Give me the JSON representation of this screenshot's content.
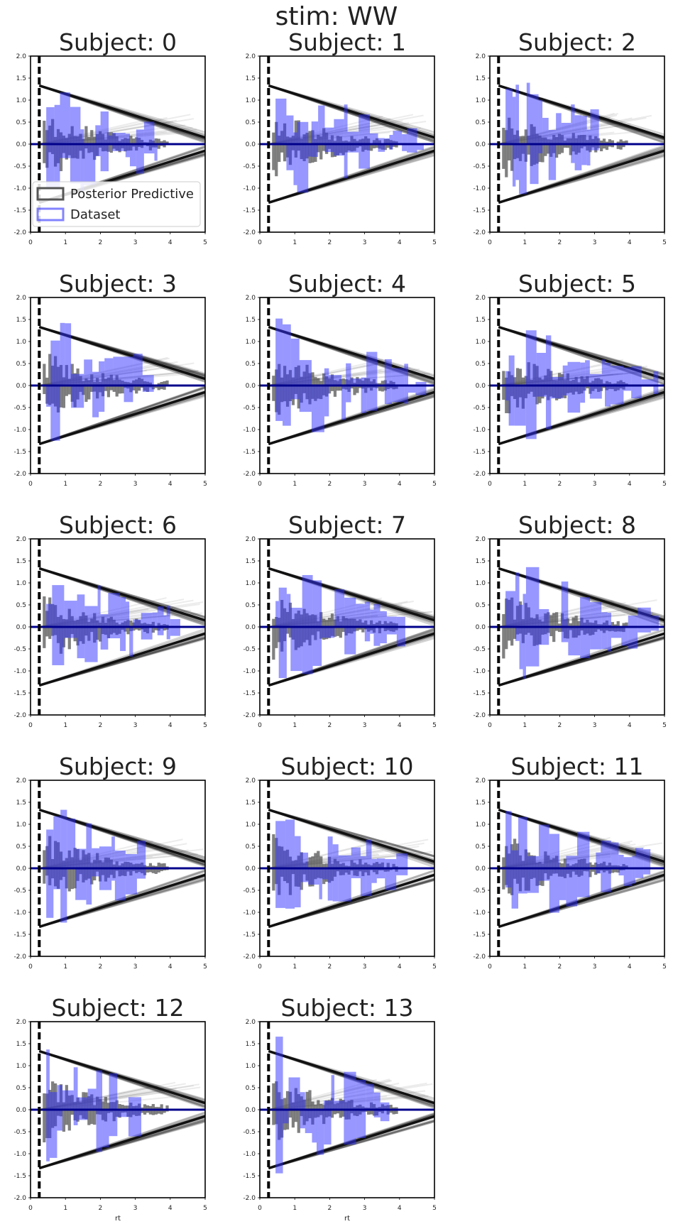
{
  "suptitle": "stim: WW",
  "chart_data": {
    "type": "mixed",
    "description": "Posterior predictive histograms (grey) vs dataset histograms (blue) per subject, with DDM-style collapsing boundaries.",
    "xlim": [
      0,
      5
    ],
    "ylim": [
      -2,
      2
    ],
    "xticks": [
      "0",
      "1",
      "2",
      "3",
      "4",
      "5"
    ],
    "yticks": [
      "2.0",
      "1.5",
      "1.0",
      "0.5",
      "0.0",
      "-0.5",
      "-1.0",
      "-1.5",
      "-2.0"
    ],
    "xlabel": "rt",
    "ylabel": "",
    "legend": {
      "entries": [
        "Posterior Predictive",
        "Dataset"
      ],
      "location": "lower-left",
      "panel": 0
    },
    "colors": {
      "posterior": "#555555",
      "dataset": "#3030ff",
      "boundary": "#111111",
      "zero_line": "#00008b",
      "axes": "#000000"
    },
    "boundary": {
      "t0": 0.25,
      "upper_start": 1.33,
      "upper_end": 0.15,
      "lower_start": -1.33,
      "lower_end": -0.15
    },
    "ndt_line_x": 0.25,
    "panels": [
      {
        "title": "Subject: 0",
        "seed": 11
      },
      {
        "title": "Subject: 1",
        "seed": 23
      },
      {
        "title": "Subject: 2",
        "seed": 37
      },
      {
        "title": "Subject: 3",
        "seed": 41
      },
      {
        "title": "Subject: 4",
        "seed": 53
      },
      {
        "title": "Subject: 5",
        "seed": 67
      },
      {
        "title": "Subject: 6",
        "seed": 79
      },
      {
        "title": "Subject: 7",
        "seed": 83
      },
      {
        "title": "Subject: 8",
        "seed": 97
      },
      {
        "title": "Subject: 9",
        "seed": 101
      },
      {
        "title": "Subject: 10",
        "seed": 113
      },
      {
        "title": "Subject: 11",
        "seed": 127
      },
      {
        "title": "Subject: 12",
        "seed": 131
      },
      {
        "title": "Subject: 13",
        "seed": 149
      }
    ]
  }
}
